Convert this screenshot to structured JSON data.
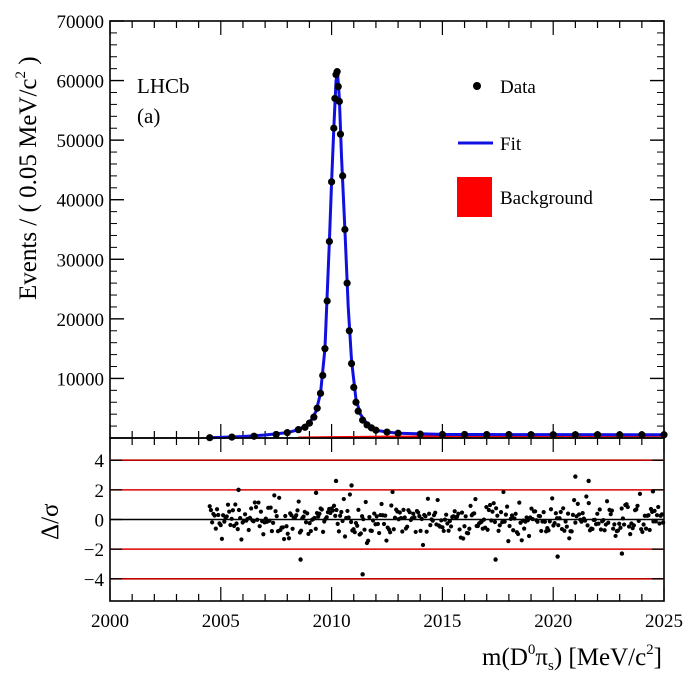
{
  "chart_data": [
    {
      "type": "scatter",
      "panel": "main",
      "ylabel_prefix": "Events / ( 0.05 MeV/c",
      "ylabel_sup": "2",
      "ylabel_suffix": " )",
      "xlim": [
        2000,
        2025
      ],
      "ylim": [
        0,
        70000
      ],
      "yticks": [
        10000,
        20000,
        30000,
        40000,
        50000,
        60000,
        70000
      ],
      "ytick_labels": [
        "10000",
        "20000",
        "30000",
        "40000",
        "50000",
        "60000",
        "70000"
      ],
      "experiment_label": "LHCb",
      "panel_label": "(a)",
      "legend": {
        "placement": "top-right",
        "entries": [
          {
            "name": "Data",
            "marker": "dot",
            "color": "#000000"
          },
          {
            "name": "Fit",
            "marker": "line",
            "color": "#1010e0"
          },
          {
            "name": "Background",
            "marker": "box",
            "color": "#ff0000"
          }
        ]
      },
      "series": [
        {
          "name": "Data",
          "style": "points",
          "x": [
            2004.5,
            2005.5,
            2006.5,
            2007.5,
            2008.0,
            2008.5,
            2008.8,
            2009.0,
            2009.2,
            2009.35,
            2009.5,
            2009.6,
            2009.7,
            2009.8,
            2009.9,
            2010.0,
            2010.1,
            2010.15,
            2010.2,
            2010.25,
            2010.3,
            2010.35,
            2010.4,
            2010.5,
            2010.6,
            2010.7,
            2010.8,
            2010.9,
            2011.0,
            2011.1,
            2011.2,
            2011.4,
            2011.6,
            2011.8,
            2012.0,
            2012.5,
            2013.0,
            2014.0,
            2015.0,
            2016.0,
            2017.0,
            2018.0,
            2019.0,
            2020.0,
            2021.0,
            2022.0,
            2023.0,
            2024.0,
            2025.0
          ],
          "y": [
            50,
            150,
            300,
            600,
            900,
            1400,
            1800,
            2500,
            3500,
            5000,
            7500,
            10500,
            15000,
            23000,
            33000,
            43000,
            52000,
            57000,
            61000,
            61500,
            59000,
            56500,
            51000,
            44000,
            35000,
            26000,
            18000,
            12500,
            8500,
            6000,
            4500,
            3000,
            2200,
            1700,
            1300,
            1000,
            800,
            650,
            600,
            600,
            580,
            570,
            560,
            560,
            550,
            550,
            540,
            540,
            540
          ]
        },
        {
          "name": "Fit",
          "style": "line",
          "color": "#1010e0",
          "x": [
            2004.5,
            2006,
            2007,
            2008,
            2008.5,
            2009,
            2009.3,
            2009.5,
            2009.7,
            2009.9,
            2010.0,
            2010.1,
            2010.2,
            2010.27,
            2010.35,
            2010.45,
            2010.6,
            2010.75,
            2010.9,
            2011.1,
            2011.3,
            2011.6,
            2012,
            2012.5,
            2013,
            2015,
            2020,
            2025
          ],
          "y": [
            50,
            250,
            500,
            900,
            1400,
            2500,
            4500,
            7500,
            15000,
            33000,
            43000,
            52000,
            60000,
            61200,
            57000,
            47000,
            35000,
            22000,
            13000,
            6500,
            4000,
            2300,
            1300,
            1000,
            800,
            600,
            560,
            540
          ]
        },
        {
          "name": "Background",
          "style": "line",
          "color": "#ff0000",
          "x": [
            2008.5,
            2010,
            2012,
            2014,
            2016,
            2018,
            2020,
            2022,
            2025
          ],
          "y": [
            80,
            150,
            220,
            260,
            290,
            310,
            330,
            340,
            350
          ]
        }
      ]
    },
    {
      "type": "scatter",
      "panel": "pull",
      "xlabel_prefix": "m(D",
      "xlabel_sup": "0",
      "xlabel_pi": "π",
      "xlabel_sub": "s",
      "xlabel_suffix": ") [MeV/c",
      "xlabel_sup2": "2",
      "xlabel_end": "]",
      "ylabel": "Δ/σ",
      "xlim": [
        2000,
        2025
      ],
      "ylim": [
        -5.5,
        5.5
      ],
      "xticks": [
        2000,
        2005,
        2010,
        2015,
        2020,
        2025
      ],
      "xtick_labels": [
        "2000",
        "2005",
        "2010",
        "2015",
        "2020",
        "2025"
      ],
      "yticks": [
        -4,
        -2,
        0,
        2,
        4
      ],
      "ytick_labels": [
        "−4",
        "−2",
        "0",
        "2",
        "4"
      ],
      "reference_lines": [
        {
          "y": 4,
          "color": "#bb0000"
        },
        {
          "y": 2,
          "color": "#dd0000"
        },
        {
          "y": 0,
          "color": "#000000"
        },
        {
          "y": -2,
          "color": "#dd0000"
        },
        {
          "y": -4,
          "color": "#bb0000"
        }
      ],
      "pulls": {
        "x_start": 2004.5,
        "x_end": 2025,
        "step": 0.05,
        "notable": [
          {
            "x": 2005.8,
            "y": 2.0
          },
          {
            "x": 2008.6,
            "y": -2.7
          },
          {
            "x": 2010.2,
            "y": 2.6
          },
          {
            "x": 2010.9,
            "y": 2.3
          },
          {
            "x": 2011.4,
            "y": -3.7
          },
          {
            "x": 2017.4,
            "y": -2.7
          },
          {
            "x": 2021.0,
            "y": 2.9
          },
          {
            "x": 2021.6,
            "y": 2.6
          },
          {
            "x": 2020.2,
            "y": -2.5
          },
          {
            "x": 2023.1,
            "y": -2.3
          },
          {
            "x": 2024.5,
            "y": 1.9
          },
          {
            "x": 2009.3,
            "y": 1.8
          }
        ]
      }
    }
  ]
}
